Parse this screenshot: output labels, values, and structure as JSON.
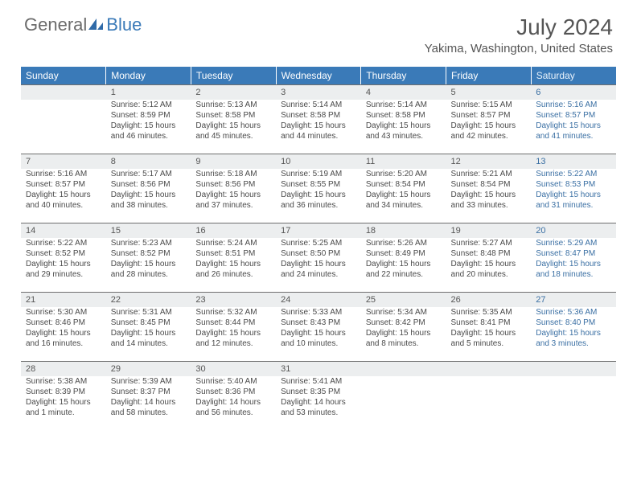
{
  "brand": {
    "part1": "General",
    "part2": "Blue"
  },
  "title": "July 2024",
  "location": "Yakima, Washington, United States",
  "header_bg": "#3a7ab8",
  "day_headers": [
    "Sunday",
    "Monday",
    "Tuesday",
    "Wednesday",
    "Thursday",
    "Friday",
    "Saturday"
  ],
  "weeks": [
    [
      null,
      {
        "n": "1",
        "sr": "5:12 AM",
        "ss": "8:59 PM",
        "dl": "15 hours and 46 minutes."
      },
      {
        "n": "2",
        "sr": "5:13 AM",
        "ss": "8:58 PM",
        "dl": "15 hours and 45 minutes."
      },
      {
        "n": "3",
        "sr": "5:14 AM",
        "ss": "8:58 PM",
        "dl": "15 hours and 44 minutes."
      },
      {
        "n": "4",
        "sr": "5:14 AM",
        "ss": "8:58 PM",
        "dl": "15 hours and 43 minutes."
      },
      {
        "n": "5",
        "sr": "5:15 AM",
        "ss": "8:57 PM",
        "dl": "15 hours and 42 minutes."
      },
      {
        "n": "6",
        "sr": "5:16 AM",
        "ss": "8:57 PM",
        "dl": "15 hours and 41 minutes."
      }
    ],
    [
      {
        "n": "7",
        "sr": "5:16 AM",
        "ss": "8:57 PM",
        "dl": "15 hours and 40 minutes."
      },
      {
        "n": "8",
        "sr": "5:17 AM",
        "ss": "8:56 PM",
        "dl": "15 hours and 38 minutes."
      },
      {
        "n": "9",
        "sr": "5:18 AM",
        "ss": "8:56 PM",
        "dl": "15 hours and 37 minutes."
      },
      {
        "n": "10",
        "sr": "5:19 AM",
        "ss": "8:55 PM",
        "dl": "15 hours and 36 minutes."
      },
      {
        "n": "11",
        "sr": "5:20 AM",
        "ss": "8:54 PM",
        "dl": "15 hours and 34 minutes."
      },
      {
        "n": "12",
        "sr": "5:21 AM",
        "ss": "8:54 PM",
        "dl": "15 hours and 33 minutes."
      },
      {
        "n": "13",
        "sr": "5:22 AM",
        "ss": "8:53 PM",
        "dl": "15 hours and 31 minutes."
      }
    ],
    [
      {
        "n": "14",
        "sr": "5:22 AM",
        "ss": "8:52 PM",
        "dl": "15 hours and 29 minutes."
      },
      {
        "n": "15",
        "sr": "5:23 AM",
        "ss": "8:52 PM",
        "dl": "15 hours and 28 minutes."
      },
      {
        "n": "16",
        "sr": "5:24 AM",
        "ss": "8:51 PM",
        "dl": "15 hours and 26 minutes."
      },
      {
        "n": "17",
        "sr": "5:25 AM",
        "ss": "8:50 PM",
        "dl": "15 hours and 24 minutes."
      },
      {
        "n": "18",
        "sr": "5:26 AM",
        "ss": "8:49 PM",
        "dl": "15 hours and 22 minutes."
      },
      {
        "n": "19",
        "sr": "5:27 AM",
        "ss": "8:48 PM",
        "dl": "15 hours and 20 minutes."
      },
      {
        "n": "20",
        "sr": "5:29 AM",
        "ss": "8:47 PM",
        "dl": "15 hours and 18 minutes."
      }
    ],
    [
      {
        "n": "21",
        "sr": "5:30 AM",
        "ss": "8:46 PM",
        "dl": "15 hours and 16 minutes."
      },
      {
        "n": "22",
        "sr": "5:31 AM",
        "ss": "8:45 PM",
        "dl": "15 hours and 14 minutes."
      },
      {
        "n": "23",
        "sr": "5:32 AM",
        "ss": "8:44 PM",
        "dl": "15 hours and 12 minutes."
      },
      {
        "n": "24",
        "sr": "5:33 AM",
        "ss": "8:43 PM",
        "dl": "15 hours and 10 minutes."
      },
      {
        "n": "25",
        "sr": "5:34 AM",
        "ss": "8:42 PM",
        "dl": "15 hours and 8 minutes."
      },
      {
        "n": "26",
        "sr": "5:35 AM",
        "ss": "8:41 PM",
        "dl": "15 hours and 5 minutes."
      },
      {
        "n": "27",
        "sr": "5:36 AM",
        "ss": "8:40 PM",
        "dl": "15 hours and 3 minutes."
      }
    ],
    [
      {
        "n": "28",
        "sr": "5:38 AM",
        "ss": "8:39 PM",
        "dl": "15 hours and 1 minute."
      },
      {
        "n": "29",
        "sr": "5:39 AM",
        "ss": "8:37 PM",
        "dl": "14 hours and 58 minutes."
      },
      {
        "n": "30",
        "sr": "5:40 AM",
        "ss": "8:36 PM",
        "dl": "14 hours and 56 minutes."
      },
      {
        "n": "31",
        "sr": "5:41 AM",
        "ss": "8:35 PM",
        "dl": "14 hours and 53 minutes."
      },
      null,
      null,
      null
    ]
  ],
  "labels": {
    "sunrise": "Sunrise:",
    "sunset": "Sunset:",
    "daylight": "Daylight:"
  }
}
